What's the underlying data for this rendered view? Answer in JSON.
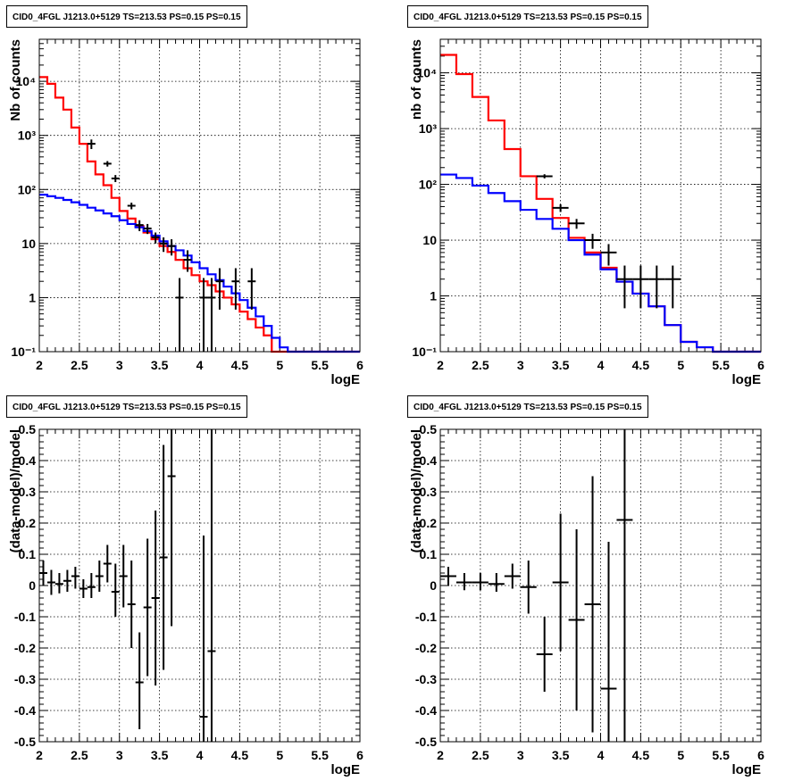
{
  "pads": [
    {
      "id": "counts-left",
      "title": "CID0_4FGL J1213.0+5129 TS=213.53 PS=0.15 PS=0.15",
      "chart_data": {
        "type": "line",
        "xlabel": "logE",
        "ylabel": "Nb of counts",
        "xlim": [
          2,
          6
        ],
        "ylim": [
          0.1,
          60000
        ],
        "yscale": "log",
        "grid": true,
        "xticks": [
          "2",
          "2.5",
          "3",
          "3.5",
          "4",
          "4.5",
          "5",
          "5.5",
          "6"
        ],
        "yticks": [
          "10⁻¹",
          "1",
          "10",
          "10²",
          "10³",
          "10⁴"
        ],
        "bin_edges": [
          2.0,
          2.1,
          2.2,
          2.3,
          2.4,
          2.5,
          2.6,
          2.7,
          2.8,
          2.9,
          3.0,
          3.1,
          3.2,
          3.3,
          3.4,
          3.5,
          3.6,
          3.7,
          3.8,
          3.9,
          4.0,
          4.1,
          4.2,
          4.3,
          4.4,
          4.5,
          4.6,
          4.7,
          4.8,
          4.9,
          5.0,
          5.1,
          5.2,
          5.3,
          5.4,
          5.5,
          5.6,
          5.7,
          5.8,
          5.9,
          6.0
        ],
        "series": [
          {
            "color": "#ff0000",
            "kind": "step",
            "values": [
              12000,
              9000,
              5000,
              3000,
              1400,
              700,
              330,
              190,
              120,
              70,
              40,
              29,
              21,
              16,
              12,
              9,
              7,
              5,
              3.5,
              2.6,
              2,
              1.7,
              1.3,
              1,
              0.75,
              0.55,
              0.4,
              0.28,
              0.2,
              0.1,
              0.1,
              0.1,
              0.1,
              0.1,
              0.1,
              0.1,
              0.1,
              0.1,
              0.1,
              0.1
            ]
          },
          {
            "color": "#0000ff",
            "kind": "step",
            "values": [
              80,
              75,
              70,
              64,
              58,
              52,
              46,
              41,
              36,
              32,
              27,
              23,
              20,
              17,
              14,
              11,
              9,
              7.5,
              6,
              4.5,
              3.5,
              2.7,
              2.1,
              1.6,
              1.2,
              0.9,
              0.65,
              0.45,
              0.3,
              0.18,
              0.12,
              0.1,
              0.1,
              0.1,
              0.1,
              0.1,
              0.1,
              0.1,
              0.1,
              0.1
            ]
          },
          {
            "color": "#000000",
            "kind": "points",
            "points": [
              {
                "x": 2.65,
                "y": 700,
                "lo": 560,
                "hi": 840
              },
              {
                "x": 2.85,
                "y": 300,
                "lo": 265,
                "hi": 335
              },
              {
                "x": 2.95,
                "y": 160,
                "lo": 137,
                "hi": 185
              },
              {
                "x": 3.15,
                "y": 50,
                "lo": 43,
                "hi": 57
              },
              {
                "x": 3.25,
                "y": 22,
                "lo": 17,
                "hi": 27
              },
              {
                "x": 3.35,
                "y": 19,
                "lo": 15,
                "hi": 23
              },
              {
                "x": 3.45,
                "y": 13,
                "lo": 10,
                "hi": 16
              },
              {
                "x": 3.55,
                "y": 10,
                "lo": 7,
                "hi": 13
              },
              {
                "x": 3.65,
                "y": 9,
                "lo": 6,
                "hi": 12
              },
              {
                "x": 3.75,
                "y": 1,
                "lo": 0.1,
                "hi": 2.3
              },
              {
                "x": 3.85,
                "y": 5,
                "lo": 3,
                "hi": 7.5
              },
              {
                "x": 4.05,
                "y": 1,
                "lo": 0.1,
                "hi": 2.3
              },
              {
                "x": 4.15,
                "y": 1,
                "lo": 0.1,
                "hi": 2.3
              },
              {
                "x": 4.25,
                "y": 2,
                "lo": 0.6,
                "hi": 3.5
              },
              {
                "x": 4.45,
                "y": 2,
                "lo": 0.6,
                "hi": 3.5
              },
              {
                "x": 4.65,
                "y": 2,
                "lo": 0.6,
                "hi": 3.5
              }
            ]
          }
        ]
      }
    },
    {
      "id": "counts-right",
      "title": "CID0_4FGL J1213.0+5129 TS=213.53 PS=0.15 PS=0.15",
      "chart_data": {
        "type": "line",
        "xlabel": "logE",
        "ylabel": "nb of counts",
        "xlim": [
          2,
          6
        ],
        "ylim": [
          0.1,
          40000
        ],
        "yscale": "log",
        "grid": true,
        "xticks": [
          "2",
          "2.5",
          "3",
          "3.5",
          "4",
          "4.5",
          "5",
          "5.5",
          "6"
        ],
        "yticks": [
          "10⁻¹",
          "1",
          "10",
          "10²",
          "10³",
          "10⁴"
        ],
        "bin_edges": [
          2.0,
          2.2,
          2.4,
          2.6,
          2.8,
          3.0,
          3.2,
          3.4,
          3.6,
          3.8,
          4.0,
          4.2,
          4.4,
          4.6,
          4.8,
          5.0,
          5.2,
          5.4,
          5.6,
          5.8,
          6.0
        ],
        "series": [
          {
            "color": "#ff0000",
            "kind": "step",
            "values": [
              21000,
              9500,
              3700,
              1400,
              430,
              140,
              55,
              25,
              11,
              6,
              3.2,
              1.8,
              1.1,
              0.65,
              0.3,
              0.15,
              0.12,
              0.1,
              0.1,
              0.1
            ]
          },
          {
            "color": "#0000ff",
            "kind": "step",
            "values": [
              150,
              130,
              95,
              70,
              50,
              35,
              24,
              16,
              10,
              5.5,
              3,
              1.8,
              1.1,
              0.65,
              0.3,
              0.15,
              0.12,
              0.1,
              0.1,
              0.1
            ]
          },
          {
            "color": "#000000",
            "kind": "points",
            "points": [
              {
                "x": 3.3,
                "y": 140,
                "lo": 128,
                "hi": 152
              },
              {
                "x": 3.5,
                "y": 38,
                "lo": 32,
                "hi": 44
              },
              {
                "x": 3.7,
                "y": 20,
                "lo": 16,
                "hi": 24
              },
              {
                "x": 3.9,
                "y": 10,
                "lo": 7,
                "hi": 13
              },
              {
                "x": 4.1,
                "y": 6,
                "lo": 3.5,
                "hi": 8.5
              },
              {
                "x": 4.3,
                "y": 2,
                "lo": 0.6,
                "hi": 3.5
              },
              {
                "x": 4.5,
                "y": 2,
                "lo": 0.6,
                "hi": 3.5
              },
              {
                "x": 4.7,
                "y": 2,
                "lo": 0.6,
                "hi": 3.5
              },
              {
                "x": 4.9,
                "y": 2,
                "lo": 0.6,
                "hi": 3.5
              }
            ]
          }
        ]
      }
    },
    {
      "id": "residuals-left",
      "title": "CID0_4FGL J1213.0+5129 TS=213.53 PS=0.15 PS=0.15",
      "chart_data": {
        "type": "scatter",
        "xlabel": "logE",
        "ylabel": "(data-model)/model",
        "xlim": [
          2,
          6
        ],
        "ylim": [
          -0.5,
          0.5
        ],
        "yscale": "linear",
        "grid": true,
        "xticks": [
          "2",
          "2.5",
          "3",
          "3.5",
          "4",
          "4.5",
          "5",
          "5.5",
          "6"
        ],
        "yticks": [
          "-0.5",
          "-0.4",
          "-0.3",
          "-0.2",
          "-0.1",
          "0",
          "0.1",
          "0.2",
          "0.3",
          "0.4",
          "0.5"
        ],
        "series": [
          {
            "color": "#000000",
            "kind": "points",
            "halfwidth": 0.05,
            "points": [
              {
                "x": 2.05,
                "y": 0.04,
                "lo": 0.0,
                "hi": 0.08
              },
              {
                "x": 2.15,
                "y": 0.01,
                "lo": -0.03,
                "hi": 0.05
              },
              {
                "x": 2.25,
                "y": 0.005,
                "lo": -0.025,
                "hi": 0.04
              },
              {
                "x": 2.35,
                "y": 0.015,
                "lo": -0.02,
                "hi": 0.05
              },
              {
                "x": 2.45,
                "y": 0.03,
                "lo": -0.01,
                "hi": 0.06
              },
              {
                "x": 2.55,
                "y": -0.01,
                "lo": -0.04,
                "hi": 0.02
              },
              {
                "x": 2.65,
                "y": -0.005,
                "lo": -0.04,
                "hi": 0.04
              },
              {
                "x": 2.75,
                "y": 0.03,
                "lo": -0.02,
                "hi": 0.08
              },
              {
                "x": 2.85,
                "y": 0.07,
                "lo": 0.01,
                "hi": 0.13
              },
              {
                "x": 2.95,
                "y": -0.02,
                "lo": -0.1,
                "hi": 0.07
              },
              {
                "x": 3.05,
                "y": 0.03,
                "lo": -0.07,
                "hi": 0.13
              },
              {
                "x": 3.15,
                "y": -0.06,
                "lo": -0.2,
                "hi": 0.08
              },
              {
                "x": 3.25,
                "y": -0.31,
                "lo": -0.46,
                "hi": -0.15
              },
              {
                "x": 3.35,
                "y": -0.07,
                "lo": -0.29,
                "hi": 0.15
              },
              {
                "x": 3.45,
                "y": -0.04,
                "lo": -0.32,
                "hi": 0.24
              },
              {
                "x": 3.55,
                "y": 0.09,
                "lo": -0.27,
                "hi": 0.45
              },
              {
                "x": 3.65,
                "y": 0.35,
                "lo": -0.13,
                "hi": 0.5
              },
              {
                "x": 4.05,
                "y": -0.42,
                "lo": -0.5,
                "hi": 0.16
              },
              {
                "x": 4.15,
                "y": -0.21,
                "lo": -0.5,
                "hi": 0.5
              }
            ]
          }
        ]
      }
    },
    {
      "id": "residuals-right",
      "title": "CID0_4FGL J1213.0+5129 TS=213.53 PS=0.15 PS=0.15",
      "chart_data": {
        "type": "scatter",
        "xlabel": "logE",
        "ylabel": "(data-model)/model",
        "xlim": [
          2,
          6
        ],
        "ylim": [
          -0.5,
          0.5
        ],
        "yscale": "linear",
        "grid": true,
        "xticks": [
          "2",
          "2.5",
          "3",
          "3.5",
          "4",
          "4.5",
          "5",
          "5.5",
          "6"
        ],
        "yticks": [
          "-0.5",
          "-0.4",
          "-0.3",
          "-0.2",
          "-0.1",
          "0",
          "0.1",
          "0.2",
          "0.3",
          "0.4",
          "0.5"
        ],
        "series": [
          {
            "color": "#000000",
            "kind": "points",
            "halfwidth": 0.1,
            "points": [
              {
                "x": 2.1,
                "y": 0.03,
                "lo": 0.0,
                "hi": 0.06
              },
              {
                "x": 2.3,
                "y": 0.01,
                "lo": -0.015,
                "hi": 0.04
              },
              {
                "x": 2.5,
                "y": 0.01,
                "lo": -0.015,
                "hi": 0.04
              },
              {
                "x": 2.7,
                "y": 0.005,
                "lo": -0.02,
                "hi": 0.04
              },
              {
                "x": 2.9,
                "y": 0.03,
                "lo": -0.01,
                "hi": 0.07
              },
              {
                "x": 3.1,
                "y": -0.005,
                "lo": -0.09,
                "hi": 0.08
              },
              {
                "x": 3.3,
                "y": -0.22,
                "lo": -0.34,
                "hi": -0.1
              },
              {
                "x": 3.5,
                "y": 0.01,
                "lo": -0.21,
                "hi": 0.23
              },
              {
                "x": 3.7,
                "y": -0.11,
                "lo": -0.4,
                "hi": 0.18
              },
              {
                "x": 3.9,
                "y": -0.06,
                "lo": -0.47,
                "hi": 0.35
              },
              {
                "x": 4.1,
                "y": -0.33,
                "lo": -0.5,
                "hi": 0.14
              },
              {
                "x": 4.3,
                "y": 0.21,
                "lo": -0.5,
                "hi": 0.5
              }
            ]
          }
        ]
      }
    }
  ]
}
